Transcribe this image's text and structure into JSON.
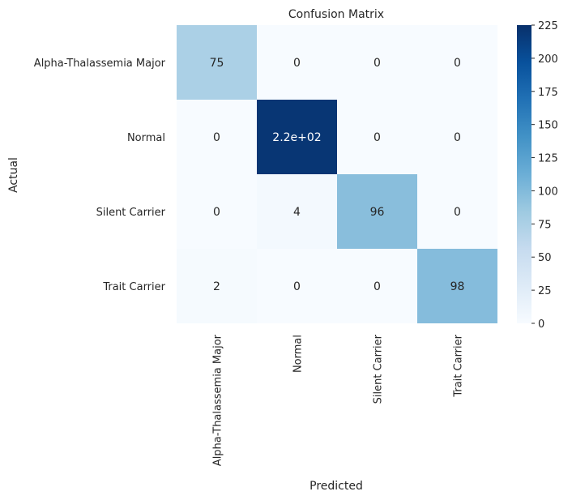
{
  "chart_data": {
    "type": "heatmap",
    "title": "Confusion Matrix",
    "xlabel": "Predicted",
    "ylabel": "Actual",
    "x_categories": [
      "Alpha-Thalassemia Major",
      "Normal",
      "Silent Carrier",
      "Trait Carrier"
    ],
    "y_categories": [
      "Alpha-Thalassemia Major",
      "Normal",
      "Silent Carrier",
      "Trait Carrier"
    ],
    "values": [
      [
        75,
        0,
        0,
        0
      ],
      [
        0,
        220,
        0,
        0
      ],
      [
        0,
        4,
        96,
        0
      ],
      [
        2,
        0,
        0,
        98
      ]
    ],
    "annotations": [
      [
        "75",
        "0",
        "0",
        "0"
      ],
      [
        "0",
        "2.2e+02",
        "0",
        "0"
      ],
      [
        "0",
        "4",
        "96",
        "0"
      ],
      [
        "2",
        "0",
        "0",
        "98"
      ]
    ],
    "colorbar": {
      "colormap": "Blues",
      "min": 0,
      "max": 225,
      "ticks": [
        0,
        25,
        50,
        75,
        100,
        125,
        150,
        175,
        200,
        225
      ]
    }
  }
}
